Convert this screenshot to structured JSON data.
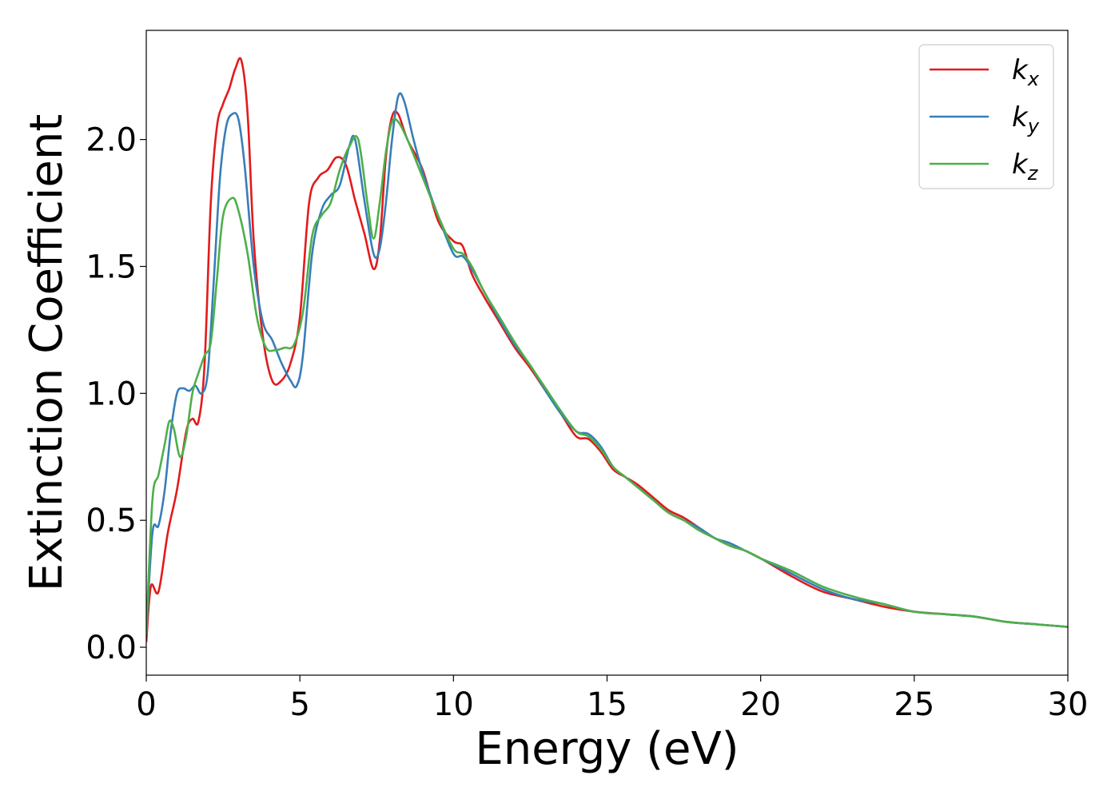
{
  "chart_data": {
    "type": "line",
    "title": "",
    "xlabel": "Energy (eV)",
    "ylabel": "Extinction Coefficient",
    "xlim": [
      0,
      30
    ],
    "ylim": [
      -0.11,
      2.43
    ],
    "xticks": [
      0,
      5,
      10,
      15,
      20,
      25,
      30
    ],
    "xtick_labels": [
      "0",
      "5",
      "10",
      "15",
      "20",
      "25",
      "30"
    ],
    "yticks": [
      0.0,
      0.5,
      1.0,
      1.5,
      2.0
    ],
    "ytick_labels": [
      "0.0",
      "0.5",
      "1.0",
      "1.5",
      "2.0"
    ],
    "grid": false,
    "legend_position": "top-right",
    "series": [
      {
        "name": "k_x",
        "label_main": "k",
        "label_sub": "x",
        "color": "#e31a1c",
        "x": [
          0,
          0.15,
          0.4,
          0.7,
          1.0,
          1.3,
          1.5,
          1.7,
          1.9,
          2.1,
          2.3,
          2.5,
          2.7,
          2.9,
          3.1,
          3.3,
          3.5,
          3.8,
          4.1,
          4.4,
          4.7,
          5.0,
          5.3,
          5.6,
          5.9,
          6.2,
          6.5,
          6.8,
          7.1,
          7.4,
          7.6,
          7.8,
          8.0,
          8.2,
          8.5,
          9.0,
          9.5,
          10.0,
          10.3,
          10.6,
          11.0,
          11.5,
          12.0,
          12.5,
          13.0,
          13.5,
          14.0,
          14.4,
          14.8,
          15.2,
          15.6,
          16.0,
          16.5,
          17.0,
          17.5,
          18.0,
          18.5,
          19.0,
          19.5,
          20.0,
          21.0,
          22.0,
          23.0,
          24.0,
          25.0,
          26.0,
          27.0,
          28.0,
          29.0,
          30.0
        ],
        "y": [
          0.02,
          0.24,
          0.22,
          0.45,
          0.62,
          0.85,
          0.9,
          0.89,
          1.12,
          1.75,
          2.05,
          2.14,
          2.2,
          2.28,
          2.31,
          2.1,
          1.6,
          1.22,
          1.05,
          1.05,
          1.12,
          1.3,
          1.75,
          1.85,
          1.88,
          1.93,
          1.9,
          1.76,
          1.63,
          1.49,
          1.6,
          1.93,
          2.09,
          2.1,
          2.0,
          1.88,
          1.68,
          1.6,
          1.58,
          1.47,
          1.38,
          1.28,
          1.18,
          1.1,
          1.01,
          0.92,
          0.83,
          0.82,
          0.77,
          0.7,
          0.67,
          0.64,
          0.59,
          0.54,
          0.51,
          0.47,
          0.43,
          0.4,
          0.38,
          0.35,
          0.28,
          0.22,
          0.19,
          0.16,
          0.14,
          0.13,
          0.12,
          0.1,
          0.09,
          0.08
        ]
      },
      {
        "name": "k_y",
        "label_main": "k",
        "label_sub": "y",
        "color": "#377eb8",
        "x": [
          0,
          0.2,
          0.4,
          0.6,
          0.8,
          1.0,
          1.2,
          1.4,
          1.6,
          1.8,
          2.0,
          2.2,
          2.4,
          2.6,
          2.8,
          3.0,
          3.2,
          3.5,
          3.8,
          4.1,
          4.4,
          4.7,
          4.9,
          5.1,
          5.4,
          5.7,
          6.0,
          6.3,
          6.6,
          6.8,
          7.1,
          7.4,
          7.6,
          7.8,
          8.0,
          8.2,
          8.4,
          8.7,
          9.0,
          9.5,
          10.0,
          10.3,
          10.6,
          11.0,
          11.5,
          12.0,
          12.5,
          13.0,
          13.5,
          14.0,
          14.4,
          14.8,
          15.2,
          15.6,
          16.0,
          16.5,
          17.0,
          17.5,
          18.0,
          18.5,
          19.0,
          19.5,
          20.0,
          21.0,
          22.0,
          23.0,
          24.0,
          25.0,
          26.0,
          27.0,
          28.0,
          29.0,
          30.0
        ],
        "y": [
          0.05,
          0.45,
          0.48,
          0.62,
          0.85,
          1.0,
          1.02,
          1.01,
          1.03,
          1.0,
          1.08,
          1.45,
          1.85,
          2.05,
          2.1,
          2.08,
          1.9,
          1.5,
          1.28,
          1.21,
          1.12,
          1.05,
          1.03,
          1.15,
          1.55,
          1.72,
          1.78,
          1.82,
          1.97,
          2.0,
          1.76,
          1.55,
          1.57,
          1.75,
          2.0,
          2.17,
          2.15,
          2.0,
          1.87,
          1.7,
          1.55,
          1.54,
          1.49,
          1.4,
          1.29,
          1.19,
          1.11,
          1.01,
          0.92,
          0.85,
          0.84,
          0.79,
          0.71,
          0.67,
          0.63,
          0.58,
          0.53,
          0.5,
          0.47,
          0.43,
          0.41,
          0.38,
          0.35,
          0.29,
          0.23,
          0.19,
          0.17,
          0.14,
          0.13,
          0.12,
          0.1,
          0.09,
          0.08
        ]
      },
      {
        "name": "k_z",
        "label_main": "k",
        "label_sub": "z",
        "color": "#4daf4a",
        "x": [
          0,
          0.2,
          0.4,
          0.6,
          0.75,
          0.9,
          1.1,
          1.3,
          1.5,
          1.7,
          1.9,
          2.1,
          2.3,
          2.5,
          2.8,
          3.0,
          3.3,
          3.6,
          3.9,
          4.2,
          4.5,
          4.8,
          5.1,
          5.4,
          5.7,
          6.0,
          6.3,
          6.6,
          6.9,
          7.2,
          7.4,
          7.6,
          7.8,
          8.0,
          8.2,
          8.5,
          9.0,
          9.5,
          10.0,
          10.3,
          10.6,
          11.0,
          11.5,
          12.0,
          12.5,
          13.0,
          13.5,
          14.0,
          14.4,
          14.8,
          15.2,
          15.6,
          16.0,
          16.5,
          17.0,
          17.5,
          18.0,
          18.5,
          19.0,
          19.5,
          20.0,
          21.0,
          22.0,
          23.0,
          24.0,
          25.0,
          26.0,
          27.0,
          28.0,
          29.0,
          30.0
        ],
        "y": [
          0.05,
          0.58,
          0.68,
          0.8,
          0.89,
          0.86,
          0.75,
          0.83,
          1.0,
          1.08,
          1.15,
          1.2,
          1.45,
          1.7,
          1.77,
          1.72,
          1.55,
          1.3,
          1.18,
          1.17,
          1.18,
          1.19,
          1.32,
          1.62,
          1.7,
          1.75,
          1.88,
          1.97,
          2.0,
          1.75,
          1.61,
          1.75,
          1.95,
          2.07,
          2.07,
          2.0,
          1.85,
          1.7,
          1.57,
          1.55,
          1.5,
          1.4,
          1.3,
          1.2,
          1.11,
          1.02,
          0.93,
          0.85,
          0.83,
          0.78,
          0.71,
          0.67,
          0.63,
          0.58,
          0.53,
          0.5,
          0.46,
          0.43,
          0.4,
          0.38,
          0.35,
          0.3,
          0.24,
          0.2,
          0.17,
          0.14,
          0.13,
          0.12,
          0.1,
          0.09,
          0.08
        ]
      }
    ]
  }
}
